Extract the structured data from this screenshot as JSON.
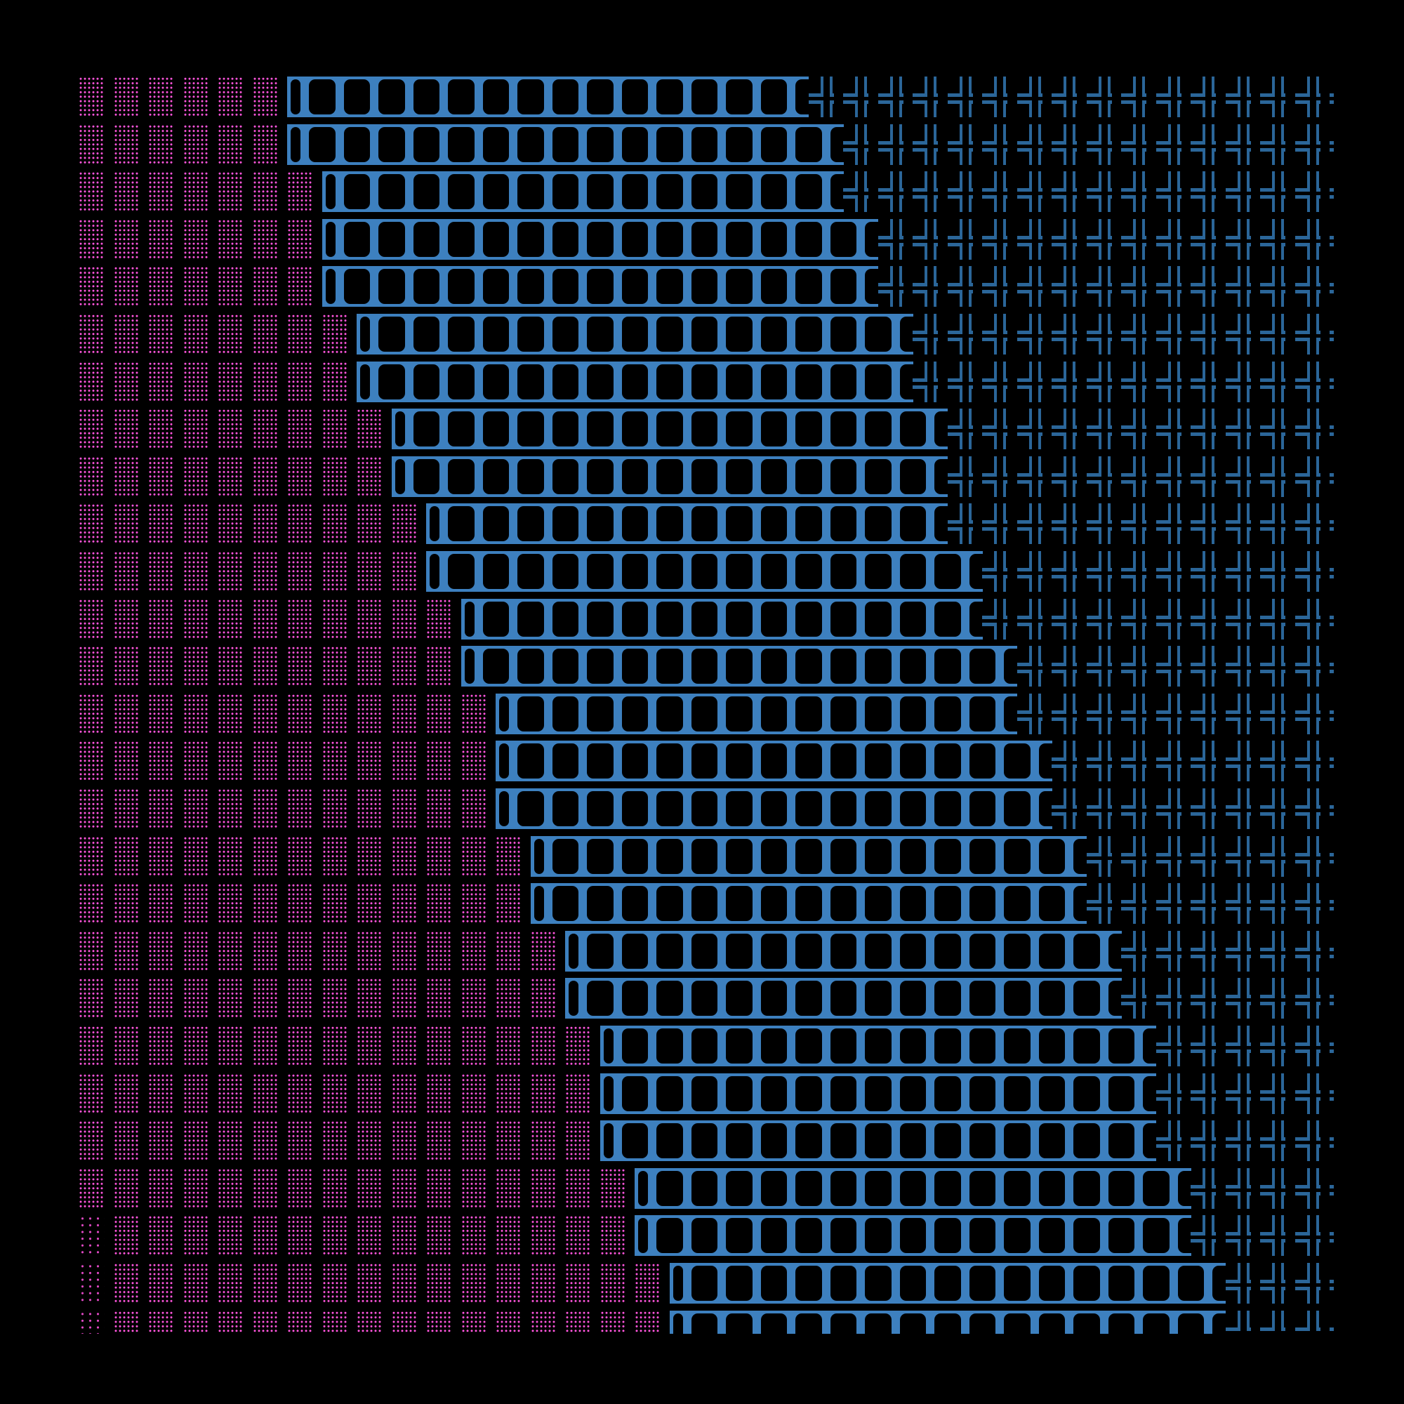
{
  "palette": {
    "background": "#000000",
    "shade": "#ff55dd",
    "shade_light": "#e048c4",
    "bar": "#3d80bf",
    "cross": "#2b6699"
  },
  "glyphs": {
    "shade": "▓",
    "shade_light": "░",
    "bar": "I",
    "cross": "╬"
  },
  "columns": 37,
  "rows": [
    {
      "lead": "shade",
      "shade": 6,
      "bar": 15
    },
    {
      "lead": "shade",
      "shade": 6,
      "bar": 16
    },
    {
      "lead": "shade",
      "shade": 7,
      "bar": 15
    },
    {
      "lead": "shade",
      "shade": 7,
      "bar": 16
    },
    {
      "lead": "shade",
      "shade": 7,
      "bar": 16
    },
    {
      "lead": "shade",
      "shade": 8,
      "bar": 16
    },
    {
      "lead": "shade",
      "shade": 8,
      "bar": 16
    },
    {
      "lead": "shade",
      "shade": 9,
      "bar": 16
    },
    {
      "lead": "shade",
      "shade": 9,
      "bar": 16
    },
    {
      "lead": "shade",
      "shade": 10,
      "bar": 15
    },
    {
      "lead": "shade",
      "shade": 10,
      "bar": 16
    },
    {
      "lead": "shade",
      "shade": 11,
      "bar": 15
    },
    {
      "lead": "shade",
      "shade": 11,
      "bar": 16
    },
    {
      "lead": "shade",
      "shade": 12,
      "bar": 15
    },
    {
      "lead": "shade",
      "shade": 12,
      "bar": 16
    },
    {
      "lead": "shade",
      "shade": 12,
      "bar": 16
    },
    {
      "lead": "shade",
      "shade": 13,
      "bar": 16
    },
    {
      "lead": "shade",
      "shade": 13,
      "bar": 16
    },
    {
      "lead": "shade",
      "shade": 14,
      "bar": 16
    },
    {
      "lead": "shade",
      "shade": 14,
      "bar": 16
    },
    {
      "lead": "shade",
      "shade": 15,
      "bar": 16
    },
    {
      "lead": "shade",
      "shade": 15,
      "bar": 16
    },
    {
      "lead": "shade",
      "shade": 15,
      "bar": 16
    },
    {
      "lead": "shade",
      "shade": 16,
      "bar": 16
    },
    {
      "lead": "shade_light",
      "shade": 16,
      "bar": 16
    },
    {
      "lead": "shade_light",
      "shade": 17,
      "bar": 16
    },
    {
      "lead": "shade_light",
      "shade": 17,
      "bar": 16
    }
  ]
}
